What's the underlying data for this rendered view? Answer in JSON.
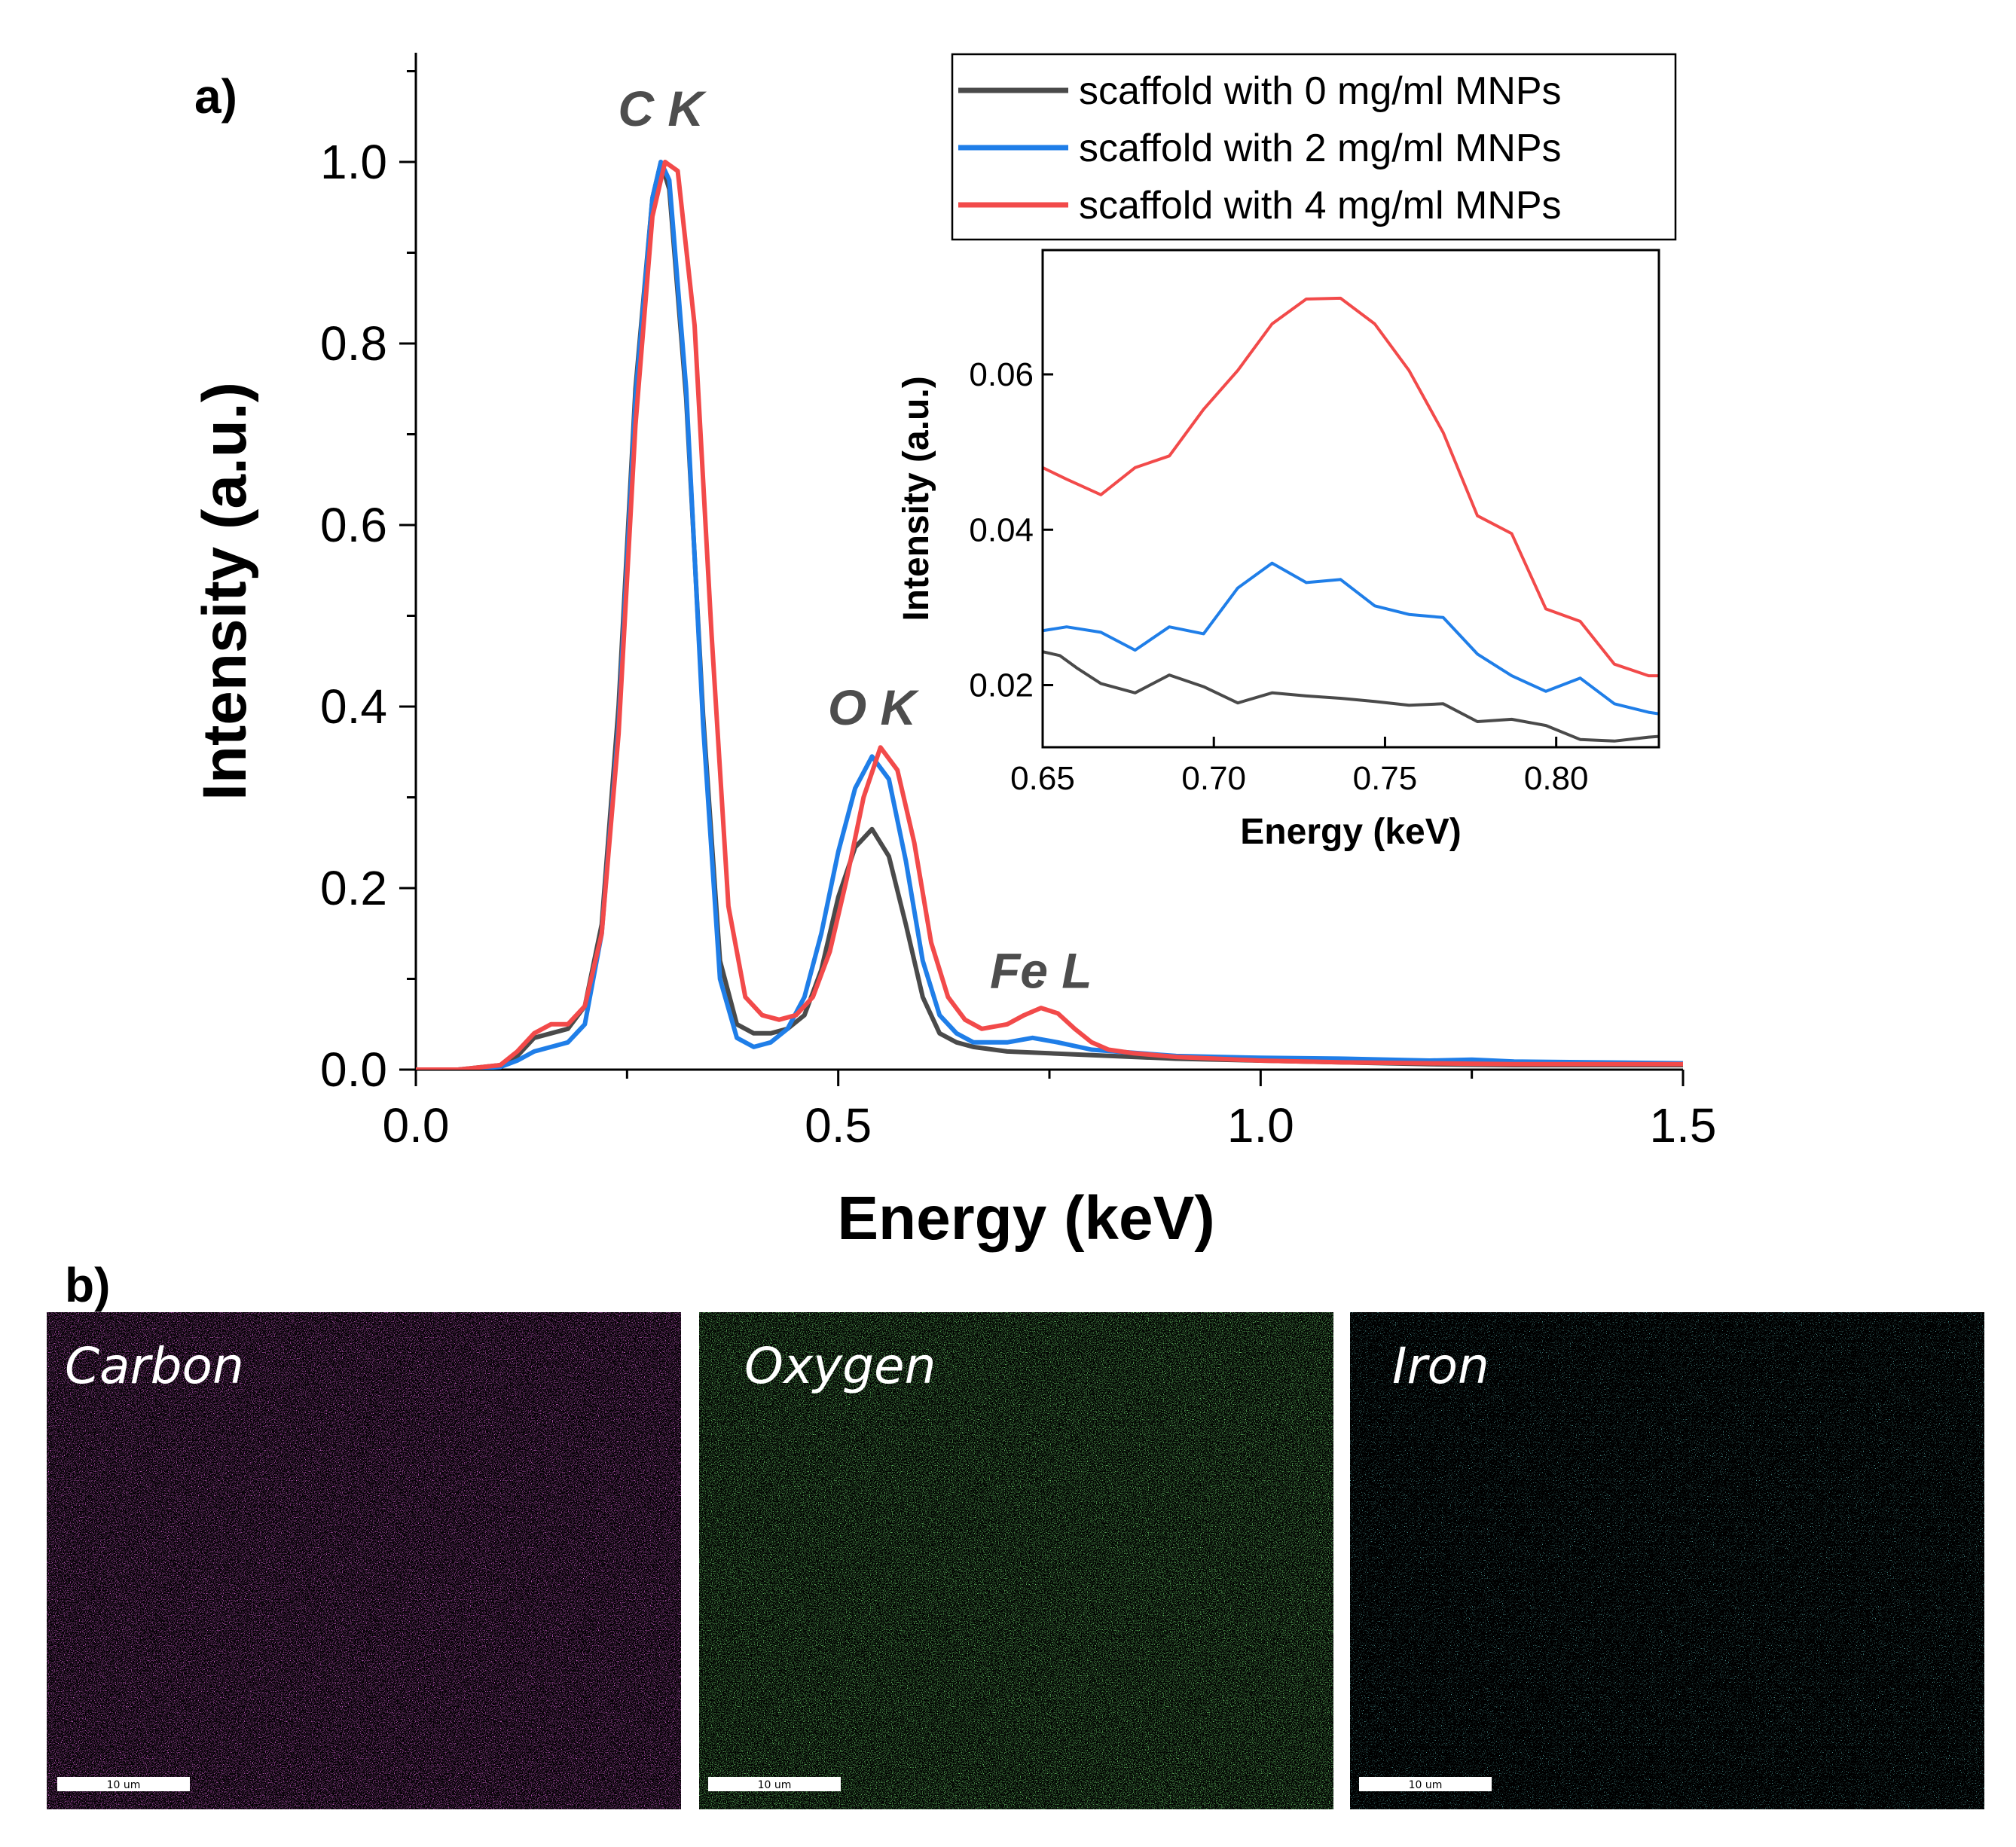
{
  "panel_labels": {
    "a": "a)",
    "b": "b)"
  },
  "chart_data": [
    {
      "type": "line",
      "xlabel": "Energy (keV)",
      "ylabel": "Intensity (a.u.)",
      "xlim": [
        0.0,
        1.5
      ],
      "ylim": [
        0.0,
        1.1
      ],
      "xticks": [
        "0.0",
        "0.5",
        "1.0",
        "1.5"
      ],
      "yticks": [
        "0.0",
        "0.2",
        "0.4",
        "0.6",
        "0.8",
        "1.0"
      ],
      "xtick_values": [
        0.0,
        0.5,
        1.0,
        1.5
      ],
      "ytick_values": [
        0.0,
        0.2,
        0.4,
        0.6,
        0.8,
        1.0
      ],
      "legend_position": "top-right",
      "annotations": [
        {
          "text": "C K",
          "x": 0.29,
          "y": 1.04
        },
        {
          "text": "O K",
          "x": 0.54,
          "y": 0.38
        },
        {
          "text": "Fe L",
          "x": 0.74,
          "y": 0.09
        }
      ],
      "series": [
        {
          "name": "scaffold with 0 mg/ml MNPs",
          "color": "#4a4a4a",
          "x": [
            0,
            0.05,
            0.1,
            0.12,
            0.14,
            0.16,
            0.18,
            0.2,
            0.22,
            0.24,
            0.26,
            0.28,
            0.29,
            0.3,
            0.32,
            0.34,
            0.36,
            0.38,
            0.4,
            0.42,
            0.44,
            0.46,
            0.48,
            0.5,
            0.52,
            0.54,
            0.56,
            0.58,
            0.6,
            0.62,
            0.64,
            0.66,
            0.7,
            0.75,
            0.8,
            0.9,
            1.0,
            1.1,
            1.2,
            1.3,
            1.4,
            1.5
          ],
          "y": [
            0,
            0,
            0.005,
            0.015,
            0.035,
            0.04,
            0.045,
            0.07,
            0.16,
            0.4,
            0.75,
            0.96,
            1.0,
            0.97,
            0.74,
            0.39,
            0.12,
            0.05,
            0.04,
            0.04,
            0.045,
            0.06,
            0.11,
            0.19,
            0.245,
            0.265,
            0.235,
            0.16,
            0.08,
            0.04,
            0.03,
            0.025,
            0.02,
            0.018,
            0.016,
            0.012,
            0.01,
            0.008,
            0.006,
            0.005,
            0.005,
            0.005
          ]
        },
        {
          "name": "scaffold with 2 mg/ml MNPs",
          "color": "#1f7ee8",
          "x": [
            0,
            0.05,
            0.1,
            0.12,
            0.14,
            0.16,
            0.18,
            0.2,
            0.22,
            0.24,
            0.26,
            0.28,
            0.29,
            0.3,
            0.32,
            0.34,
            0.36,
            0.38,
            0.4,
            0.42,
            0.44,
            0.46,
            0.48,
            0.5,
            0.52,
            0.54,
            0.56,
            0.58,
            0.6,
            0.62,
            0.64,
            0.66,
            0.7,
            0.73,
            0.76,
            0.8,
            0.9,
            1.0,
            1.1,
            1.2,
            1.25,
            1.3,
            1.4,
            1.5
          ],
          "y": [
            0,
            0,
            0.003,
            0.01,
            0.02,
            0.025,
            0.03,
            0.05,
            0.15,
            0.38,
            0.74,
            0.96,
            1.0,
            0.98,
            0.75,
            0.38,
            0.1,
            0.035,
            0.025,
            0.03,
            0.045,
            0.08,
            0.15,
            0.24,
            0.31,
            0.345,
            0.32,
            0.23,
            0.12,
            0.06,
            0.04,
            0.03,
            0.03,
            0.035,
            0.03,
            0.022,
            0.015,
            0.013,
            0.012,
            0.01,
            0.011,
            0.009,
            0.008,
            0.007
          ]
        },
        {
          "name": "scaffold with 4 mg/ml MNPs",
          "color": "#f24a4a",
          "x": [
            0,
            0.05,
            0.1,
            0.12,
            0.14,
            0.16,
            0.18,
            0.2,
            0.22,
            0.24,
            0.26,
            0.28,
            0.295,
            0.31,
            0.33,
            0.35,
            0.37,
            0.39,
            0.41,
            0.43,
            0.45,
            0.47,
            0.49,
            0.51,
            0.53,
            0.55,
            0.57,
            0.59,
            0.61,
            0.63,
            0.65,
            0.67,
            0.7,
            0.72,
            0.74,
            0.76,
            0.78,
            0.8,
            0.82,
            0.85,
            0.9,
            1.0,
            1.1,
            1.2,
            1.3,
            1.4,
            1.5
          ],
          "y": [
            0,
            0,
            0.005,
            0.02,
            0.04,
            0.05,
            0.05,
            0.07,
            0.15,
            0.37,
            0.71,
            0.94,
            1.0,
            0.99,
            0.82,
            0.48,
            0.18,
            0.08,
            0.06,
            0.055,
            0.06,
            0.08,
            0.13,
            0.21,
            0.3,
            0.355,
            0.33,
            0.25,
            0.14,
            0.08,
            0.055,
            0.045,
            0.05,
            0.06,
            0.068,
            0.062,
            0.045,
            0.03,
            0.022,
            0.018,
            0.014,
            0.01,
            0.008,
            0.007,
            0.006,
            0.006,
            0.006
          ]
        }
      ]
    },
    {
      "type": "line",
      "role": "inset",
      "xlabel": "Energy (keV)",
      "ylabel": "Intensity (a.u.)",
      "xlim": [
        0.65,
        0.83
      ],
      "ylim": [
        0.012,
        0.076
      ],
      "xticks": [
        "0.65",
        "0.70",
        "0.75",
        "0.80"
      ],
      "yticks": [
        "0.02",
        "0.04",
        "0.06"
      ],
      "xtick_values": [
        0.65,
        0.7,
        0.75,
        0.8
      ],
      "ytick_values": [
        0.02,
        0.04,
        0.06
      ],
      "series": [
        {
          "name": "scaffold with 0 mg/ml MNPs",
          "color": "#4a4a4a",
          "x": [
            0.65,
            0.655,
            0.66,
            0.667,
            0.677,
            0.687,
            0.697,
            0.707,
            0.717,
            0.727,
            0.737,
            0.747,
            0.757,
            0.767,
            0.777,
            0.787,
            0.797,
            0.807,
            0.817,
            0.827,
            0.83
          ],
          "y": [
            0.0243,
            0.0238,
            0.0222,
            0.0202,
            0.019,
            0.0213,
            0.0198,
            0.0177,
            0.019,
            0.0186,
            0.0183,
            0.0179,
            0.0174,
            0.0176,
            0.0153,
            0.0156,
            0.0148,
            0.013,
            0.0128,
            0.0133,
            0.0134
          ]
        },
        {
          "name": "scaffold with 2 mg/ml MNPs",
          "color": "#1f7ee8",
          "x": [
            0.65,
            0.657,
            0.667,
            0.677,
            0.687,
            0.697,
            0.707,
            0.717,
            0.727,
            0.737,
            0.747,
            0.757,
            0.767,
            0.777,
            0.787,
            0.797,
            0.807,
            0.817,
            0.827,
            0.83
          ],
          "y": [
            0.027,
            0.0275,
            0.0268,
            0.0245,
            0.0275,
            0.0266,
            0.0325,
            0.0357,
            0.0332,
            0.0336,
            0.0302,
            0.0291,
            0.0287,
            0.024,
            0.0212,
            0.0192,
            0.0209,
            0.0176,
            0.0165,
            0.0163
          ]
        },
        {
          "name": "scaffold with 4 mg/ml MNPs",
          "color": "#f24a4a",
          "x": [
            0.65,
            0.657,
            0.667,
            0.677,
            0.687,
            0.697,
            0.707,
            0.717,
            0.727,
            0.737,
            0.747,
            0.757,
            0.767,
            0.777,
            0.787,
            0.797,
            0.807,
            0.817,
            0.827,
            0.83
          ],
          "y": [
            0.048,
            0.0465,
            0.0445,
            0.048,
            0.0495,
            0.0555,
            0.0605,
            0.0665,
            0.0697,
            0.0698,
            0.0665,
            0.0605,
            0.0525,
            0.0418,
            0.0395,
            0.0298,
            0.0282,
            0.0227,
            0.0212,
            0.0212
          ]
        }
      ]
    }
  ],
  "eds_maps": [
    {
      "label": "Carbon",
      "color": "#ff2dff",
      "scale_bar": "10 um"
    },
    {
      "label": "Oxygen",
      "color": "#3dff3d",
      "scale_bar": "10 um"
    },
    {
      "label": "Iron",
      "color": "#38f2f2",
      "scale_bar": "10 um"
    }
  ]
}
